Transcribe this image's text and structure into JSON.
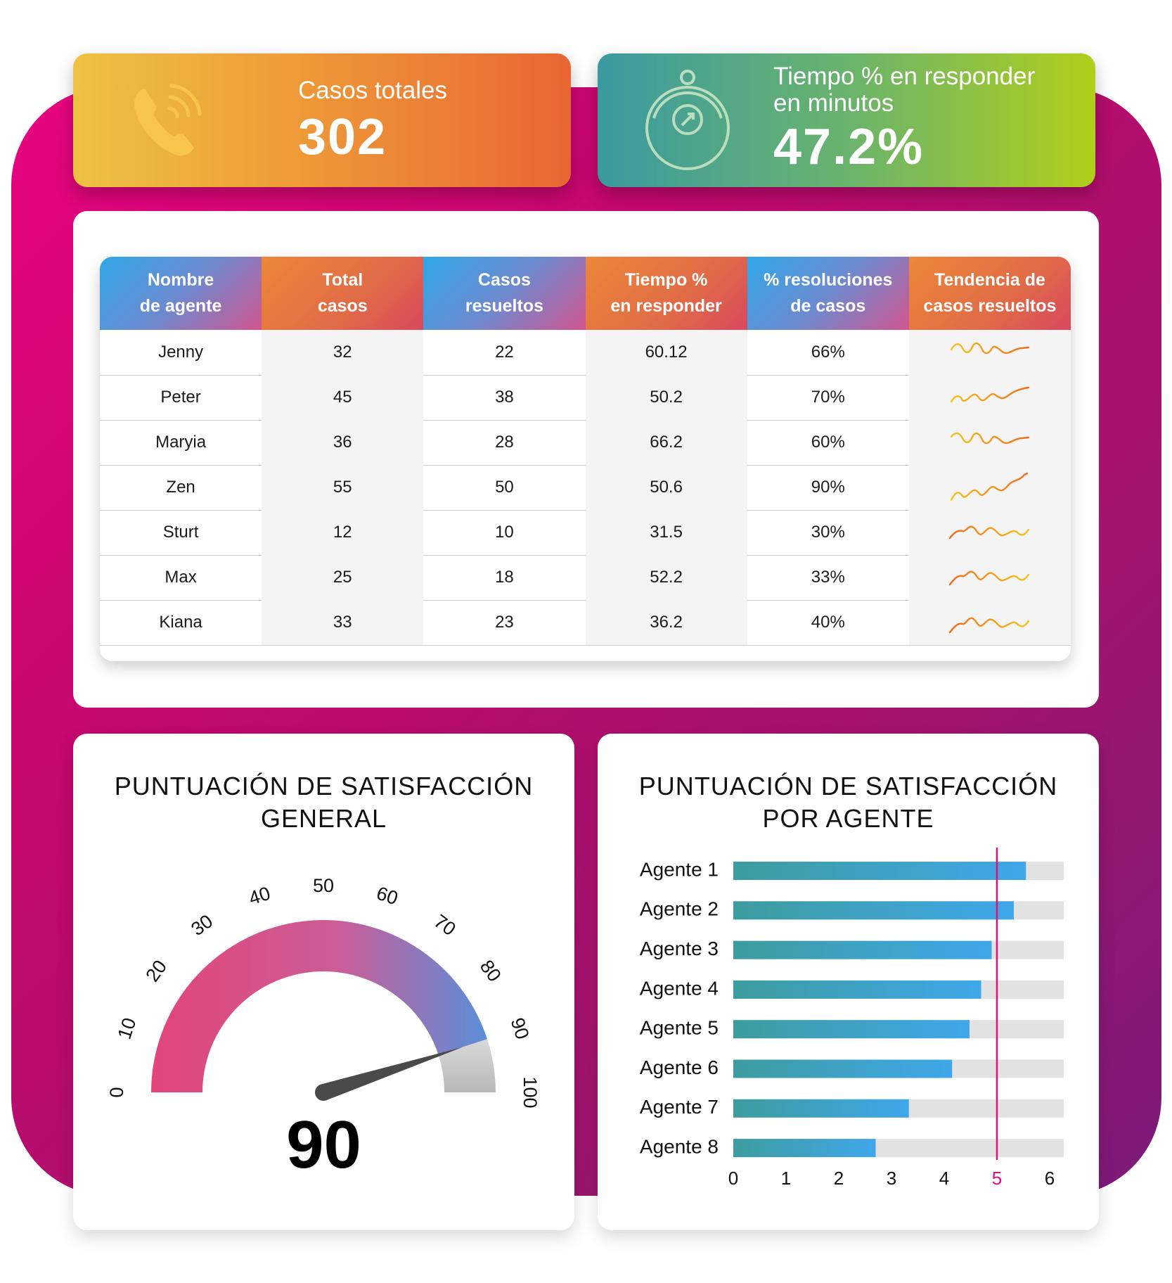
{
  "kpis": {
    "cases": {
      "label": "Casos totales",
      "value": "302",
      "icon": "phone-icon"
    },
    "response": {
      "label_line1": "Tiempo % en responder",
      "label_line2": "en minutos",
      "value": "47.2%",
      "icon": "stopwatch-icon"
    }
  },
  "table": {
    "headers": [
      "Nombre\nde agente",
      "Total\ncasos",
      "Casos\nresueltos",
      "Tiempo %\nen responder",
      "% resoluciones\nde casos",
      "Tendencia de\ncasos resueltos"
    ],
    "rows": [
      {
        "name": "Jenny",
        "total": "32",
        "resolved": "22",
        "time": "60.12",
        "rate": "66%"
      },
      {
        "name": "Peter",
        "total": "45",
        "resolved": "38",
        "time": "50.2",
        "rate": "70%"
      },
      {
        "name": "Maryia",
        "total": "36",
        "resolved": "28",
        "time": "66.2",
        "rate": "60%"
      },
      {
        "name": "Zen",
        "total": "55",
        "resolved": "50",
        "time": "50.6",
        "rate": "90%"
      },
      {
        "name": "Sturt",
        "total": "12",
        "resolved": "10",
        "time": "31.5",
        "rate": "30%"
      },
      {
        "name": "Max",
        "total": "25",
        "resolved": "18",
        "time": "52.2",
        "rate": "33%"
      },
      {
        "name": "Kiana",
        "total": "33",
        "resolved": "23",
        "time": "36.2",
        "rate": "40%"
      }
    ]
  },
  "gauge": {
    "title": "PUNTUACIÓN DE SATISFACCIÓN\nGENERAL",
    "value": "90"
  },
  "bars": {
    "title": "PUNTUACIÓN DE SATISFACCIÓN\nPOR AGENTE"
  },
  "colors": {
    "accent_magenta": "#e0107a",
    "gauge_start": "#e2457a",
    "gauge_end": "#5a8ed8",
    "bar_start": "#3d9c9e",
    "bar_end": "#3fa7ea",
    "track": "#e2e2e2"
  },
  "chart_data": [
    {
      "type": "gauge",
      "title": "PUNTUACIÓN DE SATISFACCIÓN GENERAL",
      "value": 90,
      "min": 0,
      "max": 100,
      "ticks": [
        0,
        10,
        20,
        30,
        40,
        50,
        60,
        70,
        80,
        90,
        100
      ],
      "colored_range": [
        0,
        90
      ]
    },
    {
      "type": "bar",
      "orientation": "horizontal",
      "title": "PUNTUACIÓN DE SATISFACCIÓN POR AGENTE",
      "categories": [
        "Agente 1",
        "Agente 2",
        "Agente 3",
        "Agente 4",
        "Agente 5",
        "Agente 6",
        "Agente 7",
        "Agente 8"
      ],
      "values": [
        5.55,
        5.32,
        4.9,
        4.7,
        4.48,
        4.15,
        3.33,
        2.7
      ],
      "xlim": [
        0,
        6.25
      ],
      "xticks": [
        "0",
        "1",
        "2",
        "3",
        "4",
        "5",
        "6"
      ],
      "reference_line": 5,
      "grid": false
    },
    {
      "type": "line",
      "title": "Tendencia de casos resueltos",
      "sparklines": [
        {
          "name": "Jenny",
          "trend": "flat",
          "color": "orange-yellow"
        },
        {
          "name": "Peter",
          "trend": "rising",
          "color": "orange-yellow"
        },
        {
          "name": "Maryia",
          "trend": "flat",
          "color": "orange-yellow"
        },
        {
          "name": "Zen",
          "trend": "rising",
          "color": "orange-yellow"
        },
        {
          "name": "Sturt",
          "trend": "rising-then-flat",
          "color": "orange-yellow"
        },
        {
          "name": "Max",
          "trend": "rising-then-flat",
          "color": "orange-yellow"
        },
        {
          "name": "Kiana",
          "trend": "rising-then-flat",
          "color": "orange-yellow"
        }
      ]
    }
  ]
}
